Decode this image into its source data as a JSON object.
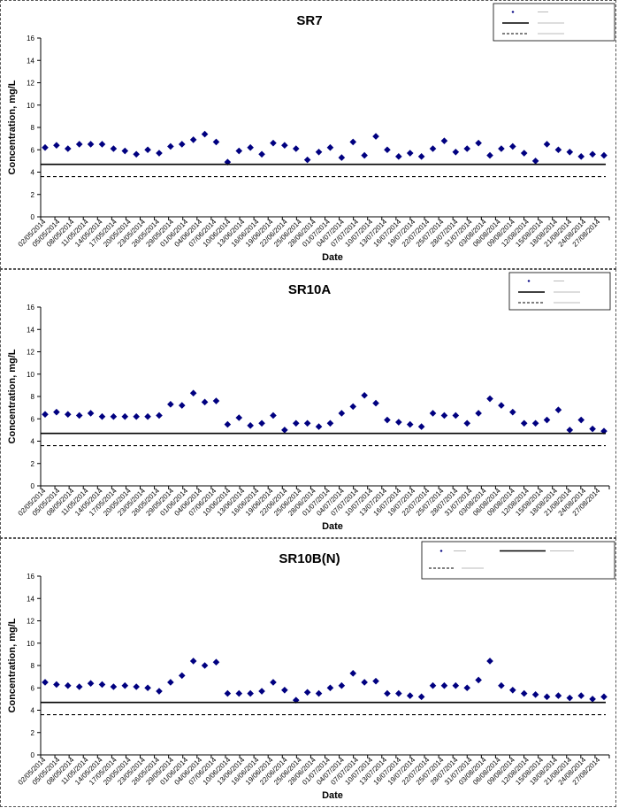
{
  "chart_data": [
    {
      "type": "scatter",
      "title": "SR7",
      "xlabel": "Date",
      "ylabel": "Concentration, mg/L",
      "ylim": [
        0,
        16
      ],
      "yticks": [
        0,
        2,
        4,
        6,
        8,
        10,
        12,
        14,
        16
      ],
      "grid": false,
      "legend_position": "top-right",
      "x_tick_labels": [
        "02/05/2014",
        "05/05/2014",
        "08/05/2014",
        "11/05/2014",
        "14/05/2014",
        "17/05/2014",
        "20/05/2014",
        "23/05/2014",
        "26/05/2014",
        "29/05/2014",
        "01/06/2014",
        "04/06/2014",
        "07/06/2014",
        "10/06/2014",
        "13/06/2014",
        "16/06/2014",
        "19/06/2014",
        "22/06/2014",
        "25/06/2014",
        "28/06/2014",
        "01/07/2014",
        "04/07/2014",
        "07/07/2014",
        "10/07/2014",
        "13/07/2014",
        "16/07/2014",
        "19/07/2014",
        "22/07/2014",
        "25/07/2014",
        "28/07/2014",
        "31/07/2014",
        "03/08/2014",
        "06/08/2014",
        "09/08/2014",
        "12/08/2014",
        "15/08/2014",
        "18/08/2014",
        "21/08/2014",
        "24/08/2014",
        "27/08/2014"
      ],
      "series": [
        {
          "kind": "points",
          "color": "#000080",
          "values": [
            6.2,
            6.4,
            6.1,
            6.5,
            6.5,
            6.5,
            6.1,
            5.9,
            5.6,
            6.0,
            5.7,
            6.3,
            6.5,
            6.9,
            7.4,
            6.7,
            4.9,
            5.9,
            6.2,
            5.6,
            6.6,
            6.4,
            6.1,
            5.1,
            5.8,
            6.2,
            5.3,
            6.7,
            5.5,
            7.2,
            6.0,
            5.4,
            5.7,
            5.4,
            6.1,
            6.8,
            5.8,
            6.1,
            6.6,
            5.5,
            6.1,
            6.3,
            5.7,
            5.0,
            6.5,
            6.0,
            5.8,
            5.4,
            5.6,
            5.5
          ]
        },
        {
          "kind": "line",
          "color": "#000000",
          "dash": "",
          "value": 4.7
        },
        {
          "kind": "line",
          "color": "#000000",
          "dash": "4,3",
          "value": 3.6
        }
      ]
    },
    {
      "type": "scatter",
      "title": "SR10A",
      "xlabel": "Date",
      "ylabel": "Concentration, mg/L",
      "ylim": [
        0,
        16
      ],
      "yticks": [
        0,
        2,
        4,
        6,
        8,
        10,
        12,
        14,
        16
      ],
      "grid": false,
      "legend_position": "top-right",
      "x_tick_labels": [
        "02/05/2014",
        "05/05/2014",
        "08/05/2014",
        "11/05/2014",
        "14/05/2014",
        "17/05/2014",
        "20/05/2014",
        "23/05/2014",
        "26/05/2014",
        "29/05/2014",
        "01/06/2014",
        "04/06/2014",
        "07/06/2014",
        "10/06/2014",
        "13/06/2014",
        "16/06/2014",
        "19/06/2014",
        "22/06/2014",
        "25/06/2014",
        "28/06/2014",
        "01/07/2014",
        "04/07/2014",
        "07/07/2014",
        "10/07/2014",
        "13/07/2014",
        "16/07/2014",
        "19/07/2014",
        "22/07/2014",
        "25/07/2014",
        "28/07/2014",
        "31/07/2014",
        "03/08/2014",
        "06/08/2014",
        "09/08/2014",
        "12/08/2014",
        "15/08/2014",
        "18/08/2014",
        "21/08/2014",
        "24/08/2014",
        "27/08/2014"
      ],
      "series": [
        {
          "kind": "points",
          "color": "#000080",
          "values": [
            6.4,
            6.6,
            6.4,
            6.3,
            6.5,
            6.2,
            6.2,
            6.2,
            6.2,
            6.2,
            6.3,
            7.3,
            7.2,
            8.3,
            7.5,
            7.6,
            5.5,
            6.1,
            5.4,
            5.6,
            6.3,
            5.0,
            5.6,
            5.6,
            5.3,
            5.6,
            6.5,
            7.1,
            8.1,
            7.4,
            5.9,
            5.7,
            5.5,
            5.3,
            6.5,
            6.3,
            6.3,
            5.6,
            6.5,
            7.8,
            7.2,
            6.6,
            5.6,
            5.6,
            5.9,
            6.8,
            5.0,
            5.9,
            5.1,
            4.9
          ]
        },
        {
          "kind": "line",
          "color": "#000000",
          "dash": "",
          "value": 4.7
        },
        {
          "kind": "line",
          "color": "#000000",
          "dash": "4,3",
          "value": 3.6
        }
      ]
    },
    {
      "type": "scatter",
      "title": "SR10B(N)",
      "xlabel": "Date",
      "ylabel": "Concentration, mg/L",
      "ylim": [
        0,
        16
      ],
      "yticks": [
        0,
        2,
        4,
        6,
        8,
        10,
        12,
        14,
        16
      ],
      "grid": false,
      "legend_position": "top-right",
      "x_tick_labels": [
        "02/05/2014",
        "05/05/2014",
        "08/05/2014",
        "11/05/2014",
        "14/05/2014",
        "17/05/2014",
        "20/05/2014",
        "23/05/2014",
        "26/05/2014",
        "29/05/2014",
        "01/06/2014",
        "04/06/2014",
        "07/06/2014",
        "10/06/2014",
        "13/06/2014",
        "16/06/2014",
        "19/06/2014",
        "22/06/2014",
        "25/06/2014",
        "28/06/2014",
        "01/07/2014",
        "04/07/2014",
        "07/07/2014",
        "10/07/2014",
        "13/07/2014",
        "16/07/2014",
        "19/07/2014",
        "22/07/2014",
        "25/07/2014",
        "28/07/2014",
        "31/07/2014",
        "03/08/2014",
        "06/08/2014",
        "09/08/2014",
        "12/08/2014",
        "15/08/2014",
        "18/08/2014",
        "21/08/2014",
        "24/08/2014",
        "27/08/2014"
      ],
      "series": [
        {
          "kind": "points",
          "color": "#000080",
          "values": [
            6.5,
            6.3,
            6.2,
            6.1,
            6.4,
            6.3,
            6.1,
            6.2,
            6.1,
            6.0,
            5.7,
            6.5,
            7.1,
            8.4,
            8.0,
            8.3,
            5.5,
            5.5,
            5.5,
            5.7,
            6.5,
            5.8,
            4.9,
            5.6,
            5.5,
            6.0,
            6.2,
            7.3,
            6.5,
            6.6,
            5.5,
            5.5,
            5.3,
            5.2,
            6.2,
            6.2,
            6.2,
            6.0,
            6.7,
            8.4,
            6.2,
            5.8,
            5.5,
            5.4,
            5.2,
            5.3,
            5.1,
            5.3,
            5.0,
            5.2
          ]
        },
        {
          "kind": "line",
          "color": "#000000",
          "dash": "",
          "value": 4.7
        },
        {
          "kind": "line",
          "color": "#000000",
          "dash": "4,3",
          "value": 3.6
        }
      ]
    }
  ]
}
